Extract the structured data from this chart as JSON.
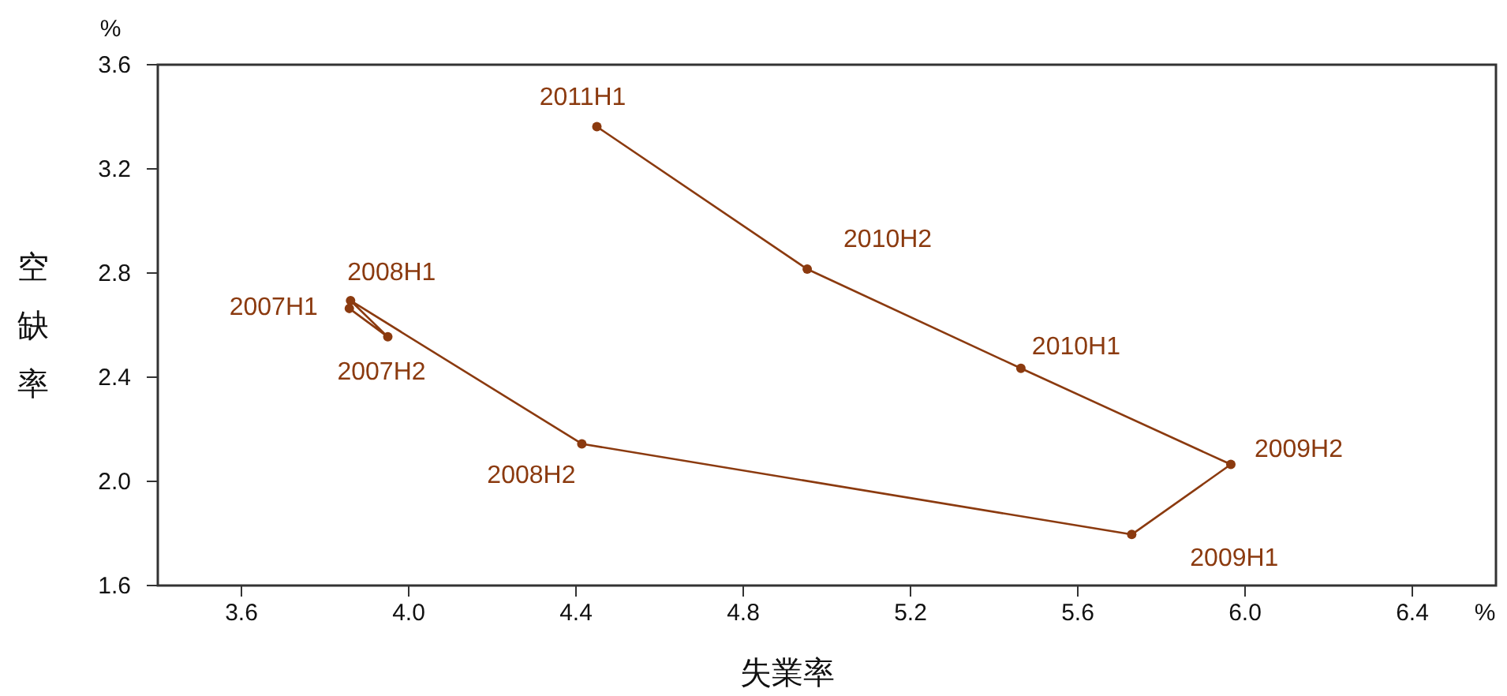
{
  "chart_data": {
    "type": "line",
    "xlabel": "失業率",
    "ylabel": "空缺率",
    "xlim": [
      3.4,
      6.6
    ],
    "xticks": [
      3.6,
      {
        "value": 4,
        "label": "4.0"
      },
      4.4,
      4.8,
      5.2,
      5.6,
      {
        "value": 6,
        "label": "6.0"
      },
      6.4
    ],
    "ylim": [
      1.6,
      3.6
    ],
    "yticks": [
      1.6,
      {
        "value": 2,
        "label": "2.0"
      },
      2.4,
      2.8,
      3.2,
      3.6
    ],
    "series": [
      {
        "color": "#8b3a0f",
        "x": [
          3.858,
          3.95,
          3.861,
          4.414,
          5.729,
          5.966,
          5.464,
          4.953,
          4.45
        ],
        "values": [
          2.664,
          2.555,
          2.694,
          2.144,
          1.796,
          2.065,
          2.434,
          2.815,
          3.362
        ]
      }
    ],
    "annotations": [
      {
        "text": "2007H1",
        "x": 3.858,
        "y": 2.664
      },
      {
        "text": "2007H2",
        "x": 3.95,
        "y": 2.555
      },
      {
        "text": "2008H1",
        "x": 3.861,
        "y": 2.694
      },
      {
        "text": "2008H2",
        "x": 4.414,
        "y": 2.144
      },
      {
        "text": "2009H1",
        "x": 5.729,
        "y": 1.796
      },
      {
        "text": "2009H2",
        "x": 5.966,
        "y": 2.065
      },
      {
        "text": "2010H1",
        "x": 5.464,
        "y": 2.434
      },
      {
        "text": "2010H2",
        "x": 4.953,
        "y": 2.815
      },
      {
        "text": "2011H1",
        "x": 4.45,
        "y": 3.362
      },
      "%",
      "%"
    ],
    "grid": false,
    "marker": "circle",
    "line_style": "solid"
  }
}
